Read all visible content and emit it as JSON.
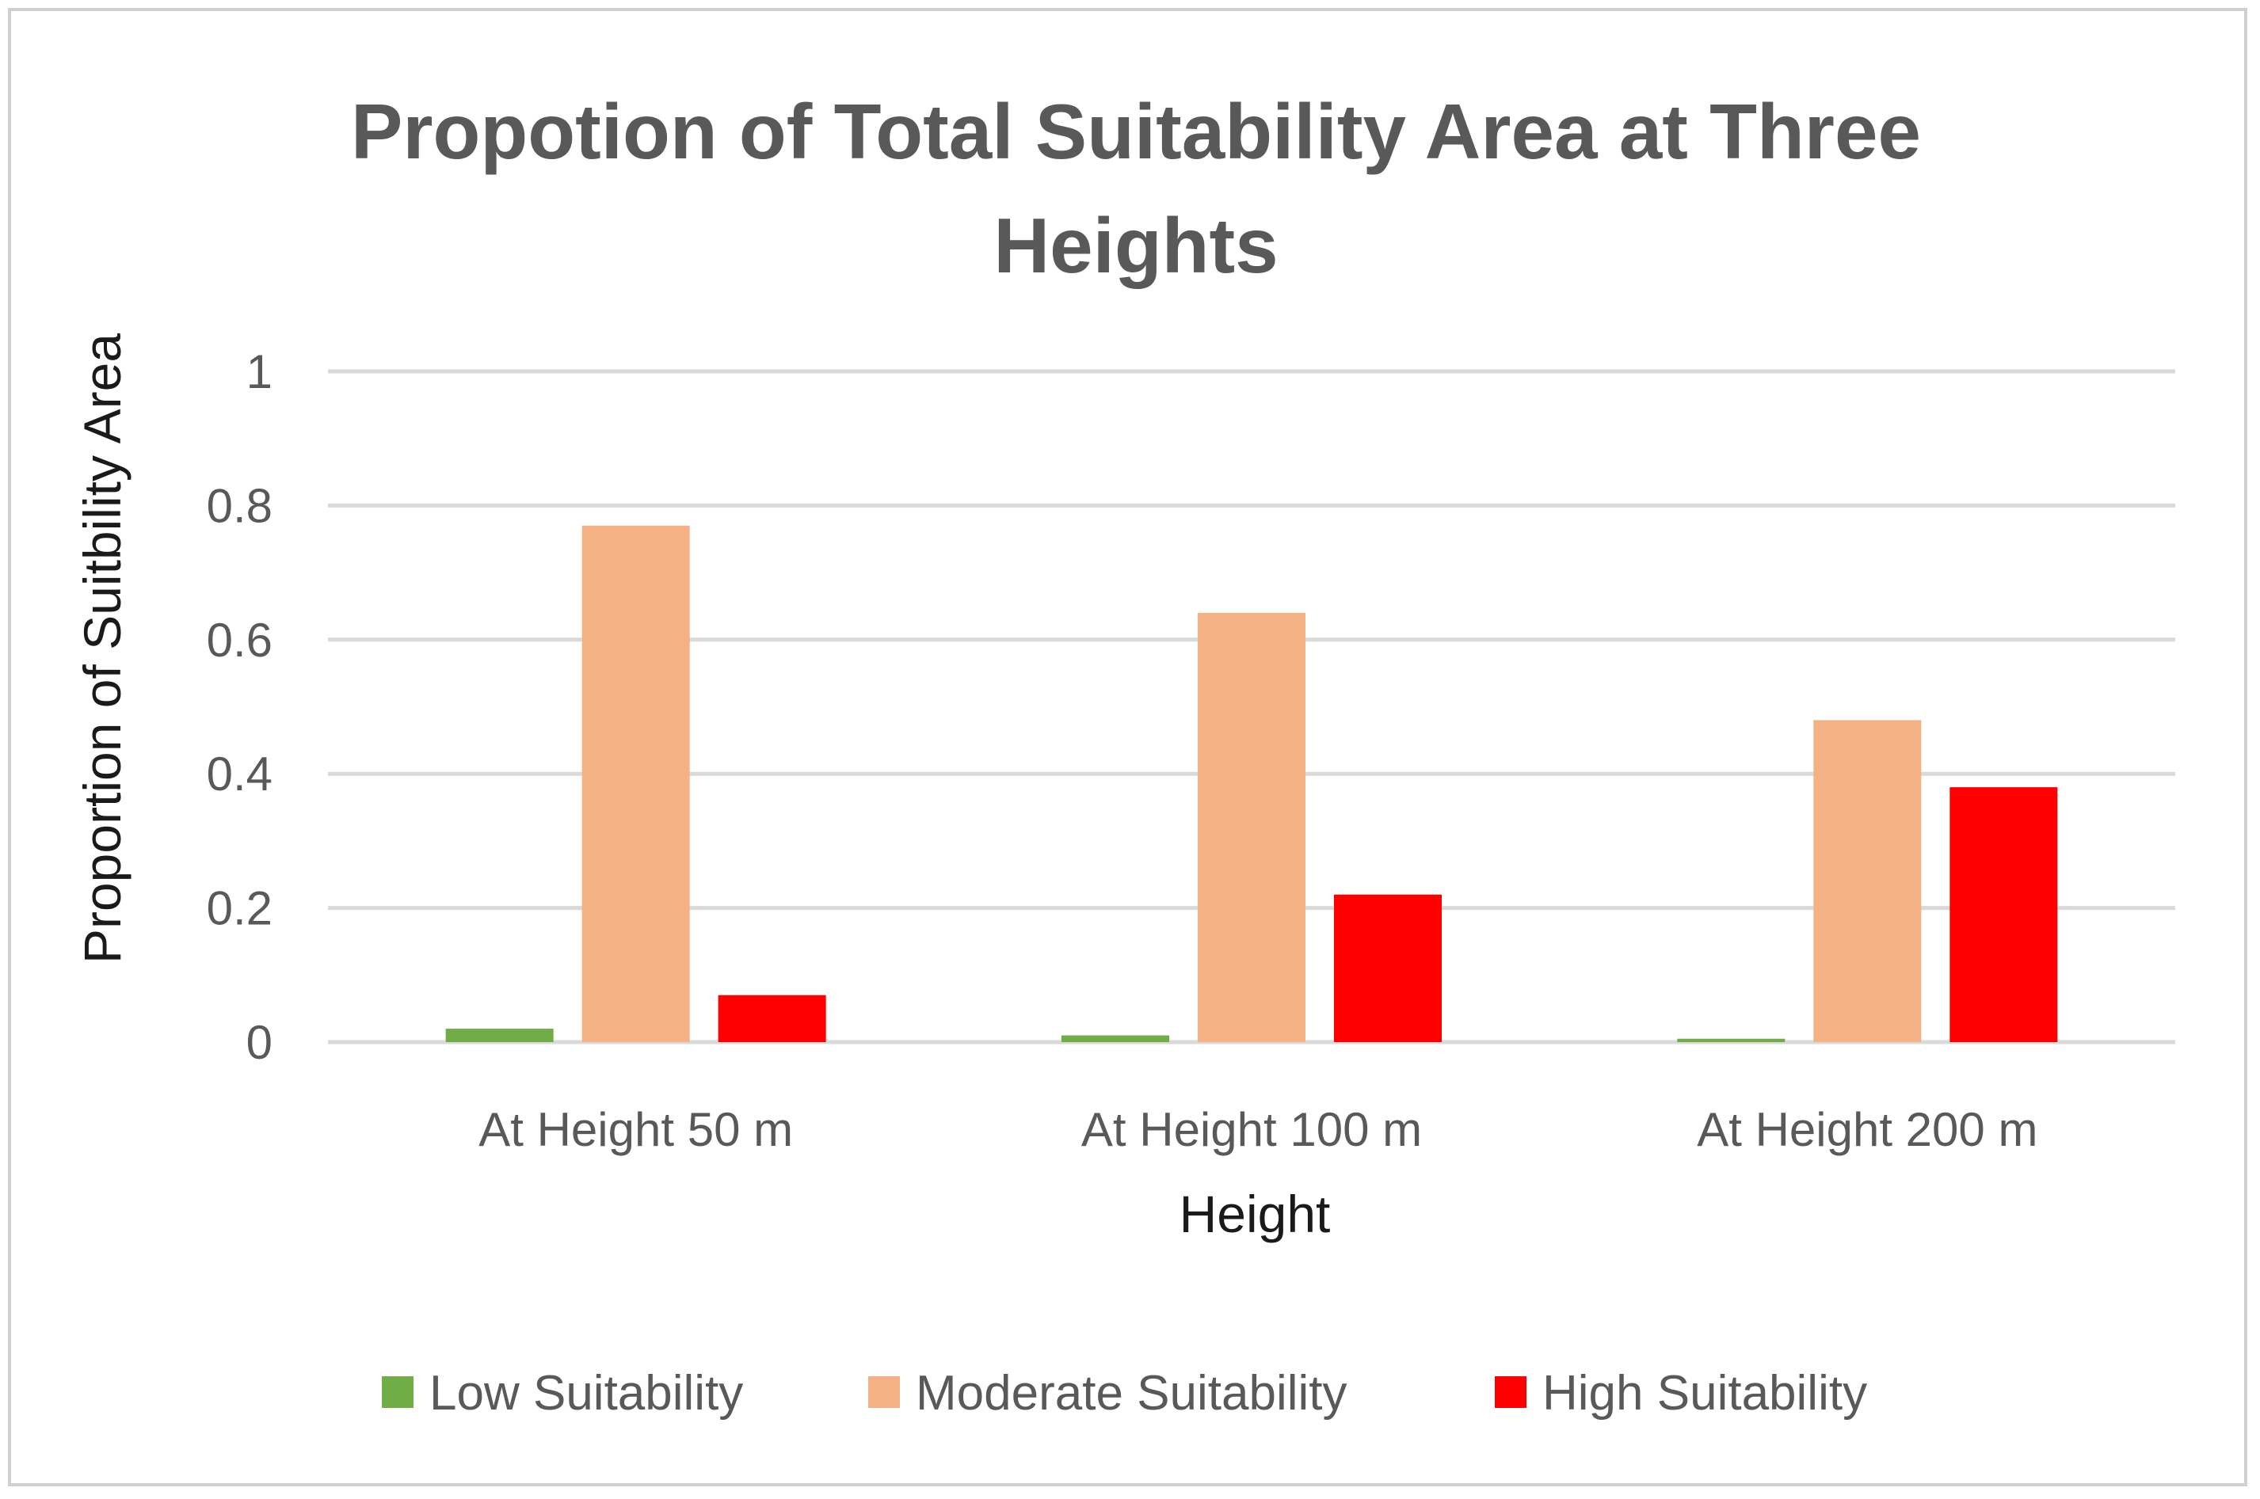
{
  "chart_data": {
    "type": "bar",
    "title_lines": [
      "Propotion of Total Suitability Area at Three",
      "Heights"
    ],
    "xlabel": "Height",
    "ylabel": "Proportion  of Suitbility Area",
    "categories": [
      "At Height 50 m",
      "At Height 100 m",
      "At Height 200 m"
    ],
    "ylim": [
      0,
      1
    ],
    "yticks": [
      {
        "value": 0,
        "label": "0"
      },
      {
        "value": 0.2,
        "label": "0.2"
      },
      {
        "value": 0.4,
        "label": "0.4"
      },
      {
        "value": 0.6,
        "label": "0.6"
      },
      {
        "value": 0.8,
        "label": "0.8"
      },
      {
        "value": 1,
        "label": "1"
      }
    ],
    "grid": true,
    "legend_position": "bottom",
    "series": [
      {
        "name": "Low Suitability",
        "color": "#70ad47",
        "values": [
          0.02,
          0.01,
          0.005
        ]
      },
      {
        "name": "Moderate Suitability",
        "color": "#f4b183",
        "values": [
          0.77,
          0.64,
          0.48
        ]
      },
      {
        "name": "High Suitability",
        "color": "#ff0000",
        "values": [
          0.07,
          0.22,
          0.38
        ]
      }
    ]
  }
}
